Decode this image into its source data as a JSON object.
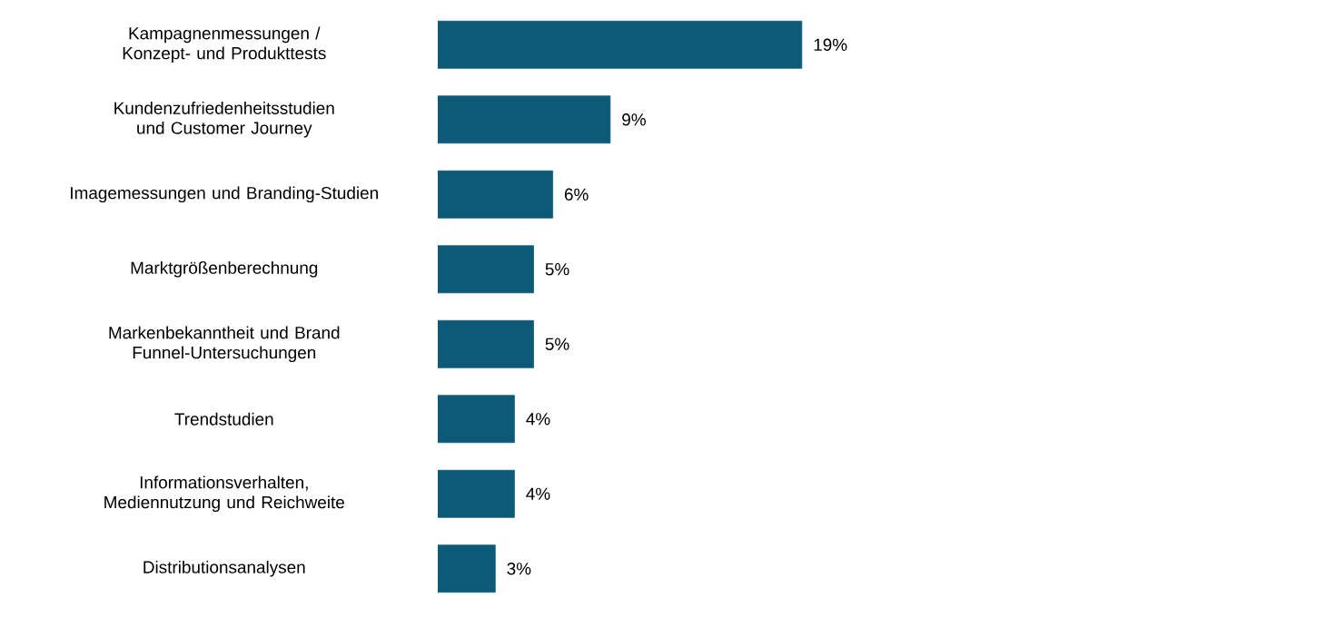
{
  "chart_data": {
    "type": "bar",
    "orientation": "horizontal",
    "categories": [
      "Kampagnenmessungen / Konzept- und Produkttests",
      "Kundenzufriedenheitsstudien und Customer Journey",
      "Imagemessungen und Branding-Studien",
      "Marktgrößenberechnung",
      "Markenbekanntheit und Brand Funnel-Untersuchungen",
      "Trendstudien",
      "Informationsverhalten, Mediennutzung und Reichweite",
      "Distributionsanalysen"
    ],
    "values": [
      19,
      9,
      6,
      5,
      5,
      4,
      4,
      3
    ],
    "value_labels": [
      "19%",
      "9%",
      "6%",
      "5%",
      "5%",
      "4%",
      "4%",
      "3%"
    ],
    "color": "#0d5a78",
    "tick_labels": "y"
  }
}
